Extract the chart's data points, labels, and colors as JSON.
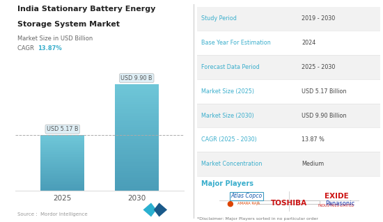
{
  "title_line1": "India Stationary Battery Energy",
  "title_line2": "Storage System Market",
  "subtitle": "Market Size in USD Billion",
  "cagr_label": "CAGR ",
  "cagr_value": "13.87%",
  "bars": [
    {
      "year": "2025",
      "value": 5.17,
      "label": "USD 5.17 B"
    },
    {
      "year": "2030",
      "value": 9.9,
      "label": "USD 9.90 B"
    }
  ],
  "bar_color_top": "#6ec6d8",
  "bar_color_bottom": "#4a9db8",
  "ylim": [
    0,
    11.5
  ],
  "dashed_line_y": 5.17,
  "source_text": "Source :  Mordor Intelligence",
  "table_rows": [
    {
      "label": "Study Period",
      "value": "2019 - 2030"
    },
    {
      "label": "Base Year For Estimation",
      "value": "2024"
    },
    {
      "label": "Forecast Data Period",
      "value": "2025 - 2030"
    },
    {
      "label": "Market Size (2025)",
      "value": "USD 5.17 Billion"
    },
    {
      "label": "Market Size (2030)",
      "value": "USD 9.90 Billion"
    },
    {
      "label": "CAGR (2025 - 2030)",
      "value": "13.87 %"
    },
    {
      "label": "Market Concentration",
      "value": "Medium"
    }
  ],
  "major_players_label": "Major Players",
  "disclaimer": "*Disclaimer: Major Players sorted in no particular order",
  "blue_color": "#3aaecc",
  "title_color": "#222222",
  "value_color": "#444444",
  "bg_color": "#ffffff",
  "row_alt_color": "#f2f2f2",
  "row_normal_color": "#ffffff",
  "divider_color": "#cccccc",
  "logo_color1": "#2196c4",
  "logo_color2": "#00b0d0"
}
